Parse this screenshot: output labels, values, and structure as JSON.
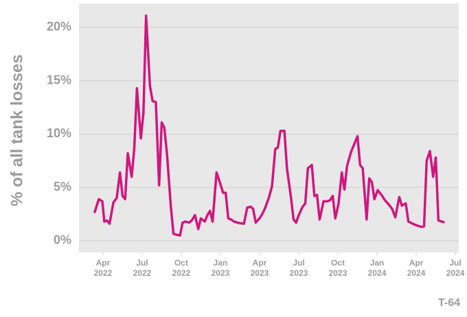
{
  "chart_data": {
    "type": "line",
    "ylabel": "% of all tank losses",
    "annotation": "T-64",
    "color": "#cf177f",
    "grid": true,
    "x": [
      2.37,
      2.68,
      2.95,
      3.1,
      3.3,
      3.5,
      3.8,
      4.05,
      4.3,
      4.5,
      4.7,
      4.9,
      5.2,
      5.4,
      5.6,
      5.9,
      6.1,
      6.3,
      6.6,
      6.8,
      7.05,
      7.3,
      7.5,
      7.7,
      7.9,
      8.2,
      8.4,
      8.7,
      8.9,
      9.1,
      9.3,
      9.6,
      9.8,
      10.05,
      10.3,
      10.5,
      10.8,
      11.0,
      11.2,
      11.4,
      11.7,
      11.95,
      12.2,
      12.4,
      12.6,
      12.8,
      13.05,
      13.3,
      13.5,
      13.8,
      14.05,
      14.3,
      14.5,
      14.7,
      15.0,
      15.2,
      15.4,
      15.7,
      15.95,
      16.2,
      16.4,
      16.6,
      16.9,
      17.1,
      17.4,
      17.6,
      17.8,
      18.0,
      18.3,
      18.5,
      18.7,
      19.0,
      19.2,
      19.4,
      19.6,
      19.9,
      20.2,
      20.4,
      20.6,
      20.8,
      21.05,
      21.3,
      21.5,
      21.7,
      22.0,
      22.2,
      22.5,
      22.7,
      22.9,
      23.2,
      23.4,
      23.6,
      23.8,
      24.05,
      24.4,
      24.6,
      24.9,
      25.15,
      25.4,
      25.7,
      25.9,
      26.2,
      26.4,
      26.9,
      27.4,
      27.6,
      27.8,
      28.05,
      28.3,
      28.5,
      28.7,
      29.1
    ],
    "values": [
      2.7,
      3.9,
      3.7,
      1.8,
      1.9,
      1.6,
      3.6,
      4.0,
      6.4,
      4.2,
      3.9,
      8.2,
      6.0,
      8.7,
      14.3,
      9.6,
      12.0,
      21.1,
      14.5,
      13.1,
      13.0,
      5.2,
      11.1,
      10.6,
      8.2,
      3.2,
      0.65,
      0.55,
      0.5,
      1.7,
      1.8,
      1.7,
      1.9,
      2.4,
      1.1,
      2.1,
      1.8,
      2.4,
      2.8,
      1.8,
      6.4,
      5.5,
      4.5,
      4.5,
      2.1,
      2.0,
      1.8,
      1.7,
      1.65,
      1.6,
      3.1,
      3.2,
      3.0,
      1.7,
      2.1,
      2.5,
      3.0,
      4.0,
      5.1,
      8.6,
      8.75,
      10.3,
      10.3,
      6.75,
      4.1,
      2.0,
      1.7,
      2.4,
      3.2,
      3.5,
      6.8,
      7.1,
      4.2,
      4.3,
      2.0,
      3.7,
      3.7,
      3.8,
      4.2,
      2.1,
      3.5,
      6.4,
      4.8,
      7.0,
      8.3,
      8.9,
      9.8,
      7.1,
      6.8,
      2.0,
      5.85,
      5.5,
      3.9,
      4.75,
      4.2,
      3.8,
      3.4,
      3.0,
      2.2,
      4.1,
      3.3,
      3.5,
      1.8,
      1.5,
      1.3,
      1.35,
      7.5,
      8.4,
      6.0,
      7.8,
      1.9,
      1.75
    ],
    "xlim": [
      1.16,
      30.26
    ],
    "xticks": [
      {
        "value": 3,
        "label": [
          "Apr",
          "2022"
        ]
      },
      {
        "value": 6,
        "label": [
          "Jul",
          "2022"
        ]
      },
      {
        "value": 9,
        "label": [
          "Oct",
          "2022"
        ]
      },
      {
        "value": 12,
        "label": [
          "Jan",
          "2023"
        ]
      },
      {
        "value": 15,
        "label": [
          "Apr",
          "2023"
        ]
      },
      {
        "value": 18,
        "label": [
          "Jul",
          "2023"
        ]
      },
      {
        "value": 21,
        "label": [
          "Oct",
          "2023"
        ]
      },
      {
        "value": 24,
        "label": [
          "Jan",
          "2024"
        ]
      },
      {
        "value": 27,
        "label": [
          "Apr",
          "2024"
        ]
      },
      {
        "value": 30,
        "label": [
          "Jul",
          "2024"
        ]
      }
    ],
    "ylim": [
      -1.1,
      22.25
    ],
    "yticks": [
      {
        "value": 0,
        "label": "0%"
      },
      {
        "value": 5,
        "label": "5%"
      },
      {
        "value": 10,
        "label": "10%"
      },
      {
        "value": 15,
        "label": "15%"
      },
      {
        "value": 20,
        "label": "20%"
      }
    ]
  }
}
